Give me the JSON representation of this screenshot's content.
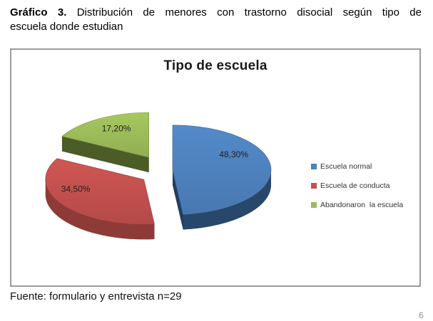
{
  "page": {
    "page_number": "6"
  },
  "heading": {
    "bold": "Gráfico 3.",
    "line1_rest": " Distribución de menores con trastorno disocial según tipo de",
    "line2": "escuela donde estudian"
  },
  "source_note": "Fuente: formulario y entrevista n=29",
  "chart_data": {
    "type": "pie",
    "title": "Tipo de escuela",
    "is_3d": true,
    "exploded": true,
    "start_angle_deg": 0,
    "direction": "clockwise",
    "legend_position": "right",
    "categories": [
      "Escuela normal",
      "Escuela de conducta",
      "Abandonaron  la escuela"
    ],
    "values": [
      48.3,
      34.5,
      17.2
    ],
    "labels": [
      "48,30%",
      "34,50%",
      "17,20%"
    ],
    "colors": [
      "#4E81BD",
      "#C2504E",
      "#9CBB59"
    ],
    "side_colors": [
      "#27476B",
      "#8E3B38",
      "#56682C"
    ]
  }
}
